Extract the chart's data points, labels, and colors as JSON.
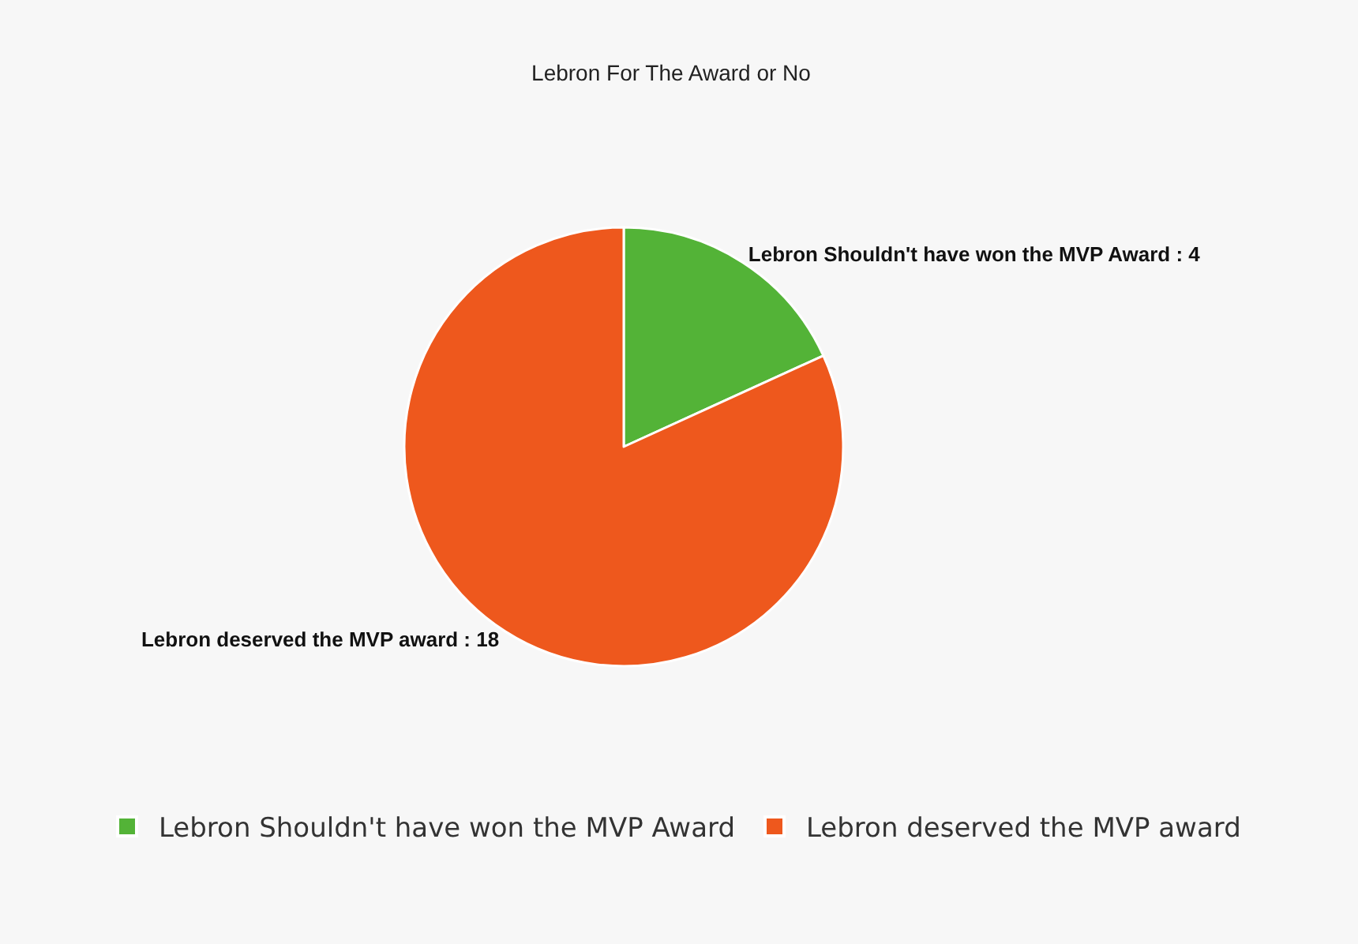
{
  "chart_data": {
    "type": "pie",
    "title": "Lebron For The Award or No",
    "categories": [
      "Lebron Shouldn't have won the MVP Award",
      "Lebron deserved the MVP award"
    ],
    "values": [
      4,
      18
    ],
    "colors": [
      "#53b337",
      "#ee581d"
    ],
    "value_labels": [
      "Lebron Shouldn't have won the MVP Award : 4",
      "Lebron deserved the MVP award : 18"
    ],
    "legend": "bottom"
  }
}
